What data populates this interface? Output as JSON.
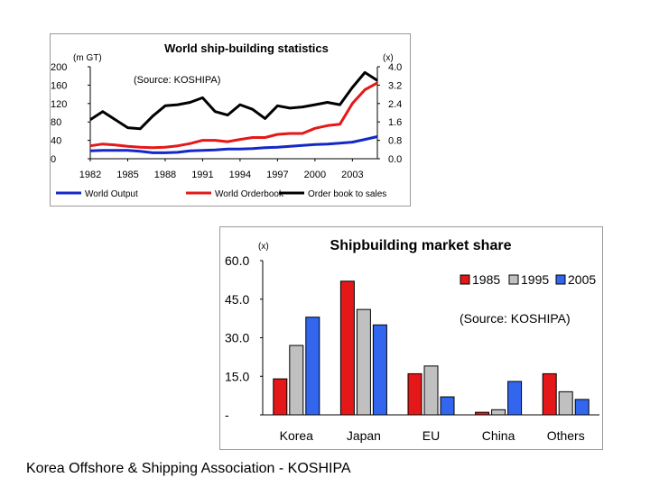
{
  "chart_data": [
    {
      "type": "line",
      "title": "World ship-building statistics",
      "source_note": "(Source: KOSHIPA)",
      "left_axis_unit": "(m GT)",
      "right_axis_unit": "(x)",
      "ylim": [
        0,
        200
      ],
      "y2lim": [
        0.0,
        4.0
      ],
      "yticks": [
        "200",
        "160",
        "120",
        "80",
        "40",
        "0"
      ],
      "y2ticks": [
        "4.0",
        "3.2",
        "2.4",
        "1.6",
        "0.8",
        "0.0"
      ],
      "xticks": [
        "1982",
        "1985",
        "1988",
        "1991",
        "1994",
        "1997",
        "2000",
        "2003"
      ],
      "x": [
        1982,
        1983,
        1984,
        1985,
        1986,
        1987,
        1988,
        1989,
        1990,
        1991,
        1992,
        1993,
        1994,
        1995,
        1996,
        1997,
        1998,
        1999,
        2000,
        2001,
        2002,
        2003,
        2004,
        2005
      ],
      "series": [
        {
          "name": "World Output",
          "axis": "left",
          "color": "#1428c8",
          "values": [
            17,
            18,
            18,
            18,
            16,
            13,
            13,
            14,
            17,
            18,
            19,
            21,
            21,
            22,
            24,
            25,
            27,
            29,
            31,
            32,
            34,
            36,
            42,
            48
          ]
        },
        {
          "name": "World Orderbook",
          "axis": "left",
          "color": "#e41818",
          "values": [
            28,
            32,
            30,
            27,
            25,
            24,
            25,
            28,
            33,
            40,
            40,
            37,
            42,
            46,
            46,
            53,
            55,
            55,
            66,
            72,
            75,
            120,
            150,
            165
          ]
        },
        {
          "name": "Order book to sales",
          "axis": "right",
          "color": "#000000",
          "values": [
            1.7,
            2.05,
            1.7,
            1.35,
            1.3,
            1.85,
            2.3,
            2.35,
            2.45,
            2.65,
            2.05,
            1.9,
            2.35,
            2.15,
            1.75,
            2.3,
            2.2,
            2.25,
            2.35,
            2.45,
            2.35,
            3.1,
            3.75,
            3.4
          ]
        }
      ],
      "legend": [
        "World Output",
        "World Orderbook",
        "Order book to sales"
      ],
      "legend_position": "bottom"
    },
    {
      "type": "bar",
      "title": "Shipbuilding market share",
      "source_note": "(Source: KOSHIPA)",
      "y_unit": "(x)",
      "ylim": [
        0,
        60
      ],
      "yticks": [
        "60.0",
        "45.0",
        "30.0",
        "15.0",
        "-"
      ],
      "categories": [
        "Korea",
        "Japan",
        "EU",
        "China",
        "Others"
      ],
      "series": [
        {
          "name": "1985",
          "color": "#e41818",
          "values": [
            14,
            52,
            16,
            1,
            16
          ]
        },
        {
          "name": "1995",
          "color": "#c0c0c0",
          "values": [
            27,
            41,
            19,
            2,
            9
          ]
        },
        {
          "name": "2005",
          "color": "#3366ee",
          "values": [
            38,
            35,
            7,
            13,
            6
          ]
        }
      ],
      "legend_position": "top-right"
    }
  ],
  "caption": "Korea Offshore & Shipping Association - KOSHIPA"
}
